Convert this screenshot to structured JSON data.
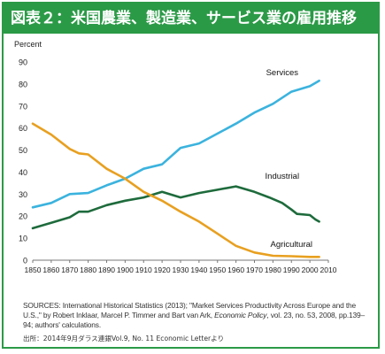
{
  "title": "図表２：米国農業、製造業、サービス業の雇用推移",
  "colors": {
    "frame": "#2b9a47",
    "services": "#3bb3de",
    "industrial": "#1e6b3c",
    "agricultural": "#e8a020"
  },
  "chart_data": {
    "type": "line",
    "ylabel": "Percent",
    "xlim": [
      1850,
      2010
    ],
    "ylim": [
      0,
      90
    ],
    "x_ticks": [
      1850,
      1860,
      1870,
      1880,
      1890,
      1900,
      1910,
      1920,
      1930,
      1940,
      1950,
      1960,
      1970,
      1980,
      1990,
      2000,
      2010
    ],
    "y_ticks": [
      0,
      10,
      20,
      30,
      40,
      50,
      60,
      70,
      80,
      90
    ],
    "grid": false,
    "legend": "inline labels",
    "series": [
      {
        "name": "Services",
        "points": [
          [
            1850,
            24
          ],
          [
            1860,
            26
          ],
          [
            1870,
            30
          ],
          [
            1880,
            30.5
          ],
          [
            1890,
            34
          ],
          [
            1900,
            37
          ],
          [
            1910,
            41.5
          ],
          [
            1920,
            43.5
          ],
          [
            1930,
            51
          ],
          [
            1940,
            53
          ],
          [
            1950,
            57.5
          ],
          [
            1960,
            62
          ],
          [
            1970,
            67
          ],
          [
            1980,
            71
          ],
          [
            1990,
            76.5
          ],
          [
            2000,
            79
          ],
          [
            2005,
            81.5
          ]
        ]
      },
      {
        "name": "Industrial",
        "points": [
          [
            1850,
            14.5
          ],
          [
            1860,
            17
          ],
          [
            1870,
            19.5
          ],
          [
            1875,
            22
          ],
          [
            1880,
            22
          ],
          [
            1890,
            25
          ],
          [
            1900,
            27
          ],
          [
            1910,
            28.5
          ],
          [
            1920,
            31
          ],
          [
            1930,
            28.5
          ],
          [
            1940,
            30.5
          ],
          [
            1950,
            32
          ],
          [
            1960,
            33.5
          ],
          [
            1970,
            31
          ],
          [
            1978,
            28.5
          ],
          [
            1985,
            26
          ],
          [
            1990,
            23
          ],
          [
            1993,
            21
          ],
          [
            2000,
            20.5
          ],
          [
            2003,
            18.5
          ],
          [
            2005,
            17.5
          ]
        ]
      },
      {
        "name": "Agricultural",
        "points": [
          [
            1850,
            62
          ],
          [
            1860,
            57
          ],
          [
            1870,
            50.5
          ],
          [
            1875,
            48.5
          ],
          [
            1880,
            48
          ],
          [
            1890,
            41.5
          ],
          [
            1900,
            37
          ],
          [
            1910,
            31
          ],
          [
            1920,
            27
          ],
          [
            1930,
            22
          ],
          [
            1940,
            17.5
          ],
          [
            1950,
            12
          ],
          [
            1960,
            6.5
          ],
          [
            1970,
            3.5
          ],
          [
            1980,
            2
          ],
          [
            1990,
            1.8
          ],
          [
            2000,
            1.5
          ],
          [
            2005,
            1.5
          ]
        ]
      }
    ]
  },
  "sources_prefix": "SOURCES: International Historical Statistics (2013); \"Market Services Productivity Across Europe and the U.S.,\" by Robert Inklaar, Marcel P. Timmer and Bart van Ark, ",
  "sources_journal": "Economic Policy",
  "sources_suffix": ", vol. 23, no. 53, 2008, pp.139–94; authors' calculations.",
  "credit": "出所：2014年9月ダラス連銀Vol.9, No. 11 Economic Letterより"
}
